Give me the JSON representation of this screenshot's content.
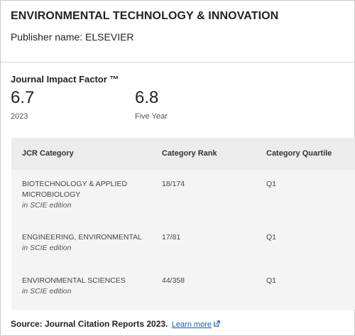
{
  "journal": {
    "title": "ENVIRONMENTAL TECHNOLOGY & INNOVATION",
    "publisher": "Publisher name: ELSEVIER"
  },
  "jif": {
    "heading": "Journal Impact Factor ™",
    "metrics": [
      {
        "value": "6.7",
        "label": "2023"
      },
      {
        "value": "6.8",
        "label": "Five Year"
      }
    ]
  },
  "table": {
    "headers": [
      "JCR Category",
      "Category Rank",
      "Category Quartile"
    ],
    "rows": [
      {
        "category": "BIOTECHNOLOGY & APPLIED MICROBIOLOGY",
        "edition": "in SCIE edition",
        "rank": "18/174",
        "quartile": "Q1"
      },
      {
        "category": "ENGINEERING, ENVIRONMENTAL",
        "edition": "in SCIE edition",
        "rank": "17/81",
        "quartile": "Q1"
      },
      {
        "category": "ENVIRONMENTAL SCIENCES",
        "edition": "in SCIE edition",
        "rank": "44/358",
        "quartile": "Q1"
      }
    ]
  },
  "footer": {
    "source": "Source: Journal Citation Reports  2023.",
    "learn_more": "Learn more",
    "link_icon": "external-link-icon",
    "link_color": "#1a5ea8"
  }
}
